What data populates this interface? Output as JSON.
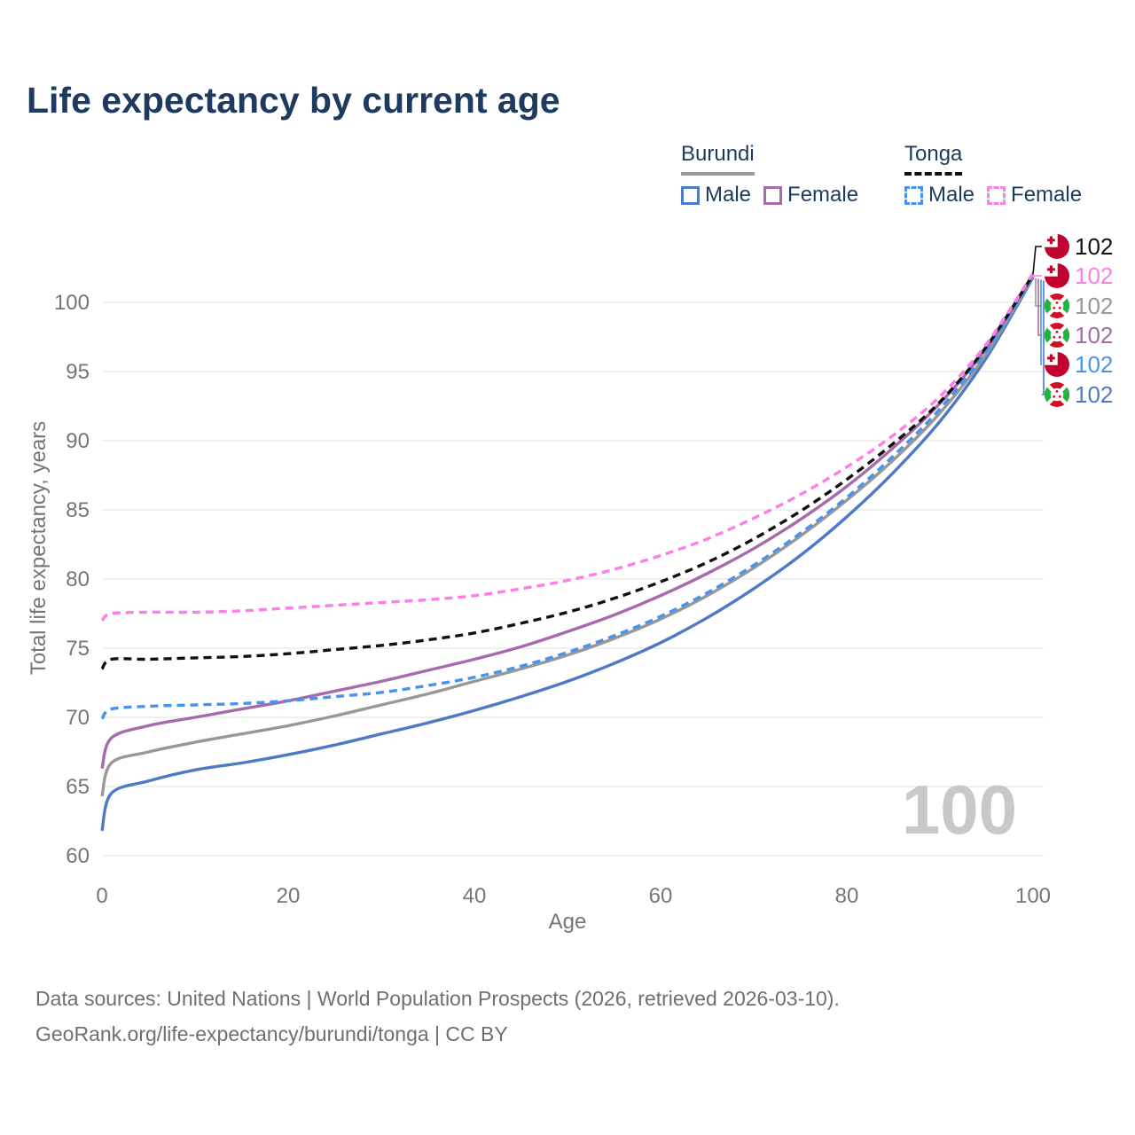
{
  "title": "Life expectancy by current age",
  "legend": {
    "groups": [
      {
        "name": "Burundi",
        "line_style": "solid",
        "underline_color": "#9a9a9a",
        "items": [
          {
            "label": "Male",
            "color": "#4e79c5",
            "dashed": false
          },
          {
            "label": "Female",
            "color": "#a76aab",
            "dashed": false
          }
        ]
      },
      {
        "name": "Tonga",
        "line_style": "dashed",
        "underline_color": "#111111",
        "items": [
          {
            "label": "Male",
            "color": "#4793f0",
            "dashed": true
          },
          {
            "label": "Female",
            "color": "#fc7ee7",
            "dashed": true
          }
        ]
      }
    ]
  },
  "chart_data": {
    "type": "line",
    "title": "Life expectancy by current age",
    "xlabel": "Age",
    "ylabel": "Total life expectancy, years",
    "xlim": [
      0,
      100
    ],
    "ylim": [
      60,
      100
    ],
    "x_ticks": [
      0,
      20,
      40,
      60,
      80,
      100
    ],
    "y_ticks": [
      60,
      65,
      70,
      75,
      80,
      85,
      90,
      95,
      100
    ],
    "grid": "horizontal-only",
    "gridline_color": "#ececec",
    "tick_color": "#757575",
    "watermark": "100",
    "x": [
      0,
      1,
      5,
      10,
      15,
      20,
      25,
      30,
      35,
      40,
      45,
      50,
      55,
      60,
      65,
      70,
      75,
      80,
      85,
      90,
      95,
      100
    ],
    "series": [
      {
        "name": "Burundi Male",
        "country": "burundi",
        "sex": "male",
        "color": "#4e79c5",
        "dashed": false,
        "values": [
          61.8,
          64.5,
          65.4,
          66.2,
          66.7,
          67.3,
          68.0,
          68.8,
          69.6,
          70.5,
          71.5,
          72.6,
          73.9,
          75.4,
          77.2,
          79.3,
          81.7,
          84.5,
          87.7,
          91.4,
          96.0,
          101.8
        ]
      },
      {
        "name": "Burundi Total",
        "country": "burundi",
        "sex": "both",
        "color": "#989898",
        "dashed": false,
        "values": [
          64.3,
          66.7,
          67.5,
          68.2,
          68.8,
          69.4,
          70.1,
          70.9,
          71.7,
          72.6,
          73.5,
          74.5,
          75.7,
          77.1,
          78.8,
          80.8,
          83.1,
          85.7,
          88.6,
          92.0,
          96.3,
          101.9
        ]
      },
      {
        "name": "Burundi Female",
        "country": "burundi",
        "sex": "female",
        "color": "#a76aab",
        "dashed": false,
        "values": [
          66.3,
          68.5,
          69.4,
          70.0,
          70.6,
          71.2,
          71.9,
          72.6,
          73.4,
          74.2,
          75.1,
          76.2,
          77.4,
          78.8,
          80.4,
          82.2,
          84.3,
          86.7,
          89.5,
          92.7,
          96.7,
          102.0
        ]
      },
      {
        "name": "Tonga Male",
        "country": "tonga",
        "sex": "male",
        "color": "#4793f0",
        "dashed": true,
        "values": [
          69.9,
          70.6,
          70.8,
          70.9,
          71.0,
          71.2,
          71.5,
          71.8,
          72.3,
          72.9,
          73.7,
          74.7,
          75.9,
          77.3,
          79.0,
          81.0,
          83.3,
          85.9,
          88.9,
          92.3,
          96.5,
          101.9
        ]
      },
      {
        "name": "Tonga Total",
        "country": "tonga",
        "sex": "both",
        "color": "#111111",
        "dashed": true,
        "values": [
          73.5,
          74.2,
          74.2,
          74.3,
          74.4,
          74.6,
          74.9,
          75.2,
          75.6,
          76.1,
          76.8,
          77.6,
          78.6,
          79.8,
          81.2,
          82.9,
          84.9,
          87.2,
          89.8,
          92.8,
          96.8,
          102.0
        ]
      },
      {
        "name": "Tonga Female",
        "country": "tonga",
        "sex": "female",
        "color": "#fc7ee7",
        "dashed": true,
        "values": [
          77.0,
          77.5,
          77.6,
          77.6,
          77.7,
          77.9,
          78.1,
          78.3,
          78.5,
          78.8,
          79.3,
          79.9,
          80.7,
          81.7,
          82.9,
          84.4,
          86.1,
          88.1,
          90.4,
          93.2,
          97.0,
          102.1
        ]
      }
    ],
    "end_labels": [
      {
        "value": "102",
        "flag": "tonga",
        "color": "#111111",
        "series": "Tonga Total"
      },
      {
        "value": "102",
        "flag": "tonga",
        "color": "#fc7ee7",
        "series": "Tonga Female"
      },
      {
        "value": "102",
        "flag": "burundi",
        "color": "#989898",
        "series": "Burundi Total"
      },
      {
        "value": "102",
        "flag": "burundi",
        "color": "#a76aab",
        "series": "Burundi Female"
      },
      {
        "value": "102",
        "flag": "tonga",
        "color": "#4793f0",
        "series": "Tonga Male"
      },
      {
        "value": "102",
        "flag": "burundi",
        "color": "#4e79c5",
        "series": "Burundi Male"
      }
    ]
  },
  "footer": {
    "line1": "Data sources: United Nations | World Population Prospects (2026, retrieved 2026-03-10).",
    "line2": "GeoRank.org/life-expectancy/burundi/tonga | CC BY"
  }
}
